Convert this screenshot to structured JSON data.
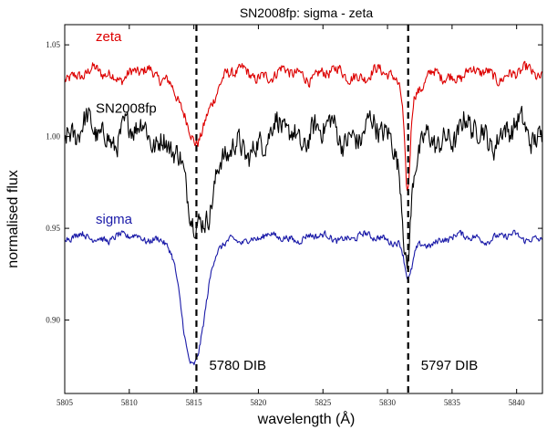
{
  "chart_data": {
    "type": "line",
    "title": "SN2008fp: sigma - zeta",
    "xlabel": "wavelength (Å)",
    "ylabel": "normalised flux",
    "xlim": [
      5805,
      5842
    ],
    "ylim": [
      0.86,
      1.061
    ],
    "xticks": [
      5805,
      5810,
      5815,
      5820,
      5825,
      5830,
      5835,
      5840
    ],
    "yticks": [
      0.9,
      0.95,
      1.0,
      1.05
    ],
    "ytick_labels": [
      "0.90",
      "0.95",
      "1.00",
      "1.05"
    ],
    "series": [
      {
        "name": "zeta",
        "color": "#dd0000",
        "base": 1.034,
        "noise": 0.004,
        "dips": [
          {
            "center": 5815.1,
            "depth": 0.038,
            "width": 0.9
          },
          {
            "center": 5831.55,
            "depth": 0.05,
            "width": 0.2
          },
          {
            "center": 5831.9,
            "depth": 0.012,
            "width": 0.8
          }
        ]
      },
      {
        "name": "SN2008fp",
        "color": "#000000",
        "base": 1.002,
        "noise": 0.009,
        "dips": [
          {
            "center": 5815.2,
            "depth": 0.045,
            "width": 1.0
          },
          {
            "center": 5817.5,
            "depth": 0.012,
            "width": 1.6
          },
          {
            "center": 5831.5,
            "depth": 0.062,
            "width": 0.28
          },
          {
            "center": 5832.0,
            "depth": 0.015,
            "width": 0.9
          }
        ]
      },
      {
        "name": "sigma",
        "color": "#1a1aa8",
        "base": 0.945,
        "noise": 0.0025,
        "dips": [
          {
            "center": 5814.9,
            "depth": 0.068,
            "width": 0.85
          },
          {
            "center": 5816.6,
            "depth": 0.004,
            "width": 1.2
          },
          {
            "center": 5831.6,
            "depth": 0.018,
            "width": 0.3
          },
          {
            "center": 5832.2,
            "depth": 0.006,
            "width": 0.9
          }
        ]
      }
    ],
    "vlines": [
      {
        "x": 5815.2,
        "label": "5780 DIB"
      },
      {
        "x": 5831.6,
        "label": "5797 DIB"
      }
    ],
    "series_labels": [
      {
        "text": "zeta",
        "color": "#dd0000"
      },
      {
        "text": "SN2008fp",
        "color": "#000000"
      },
      {
        "text": "sigma",
        "color": "#1a1aa8"
      }
    ]
  }
}
